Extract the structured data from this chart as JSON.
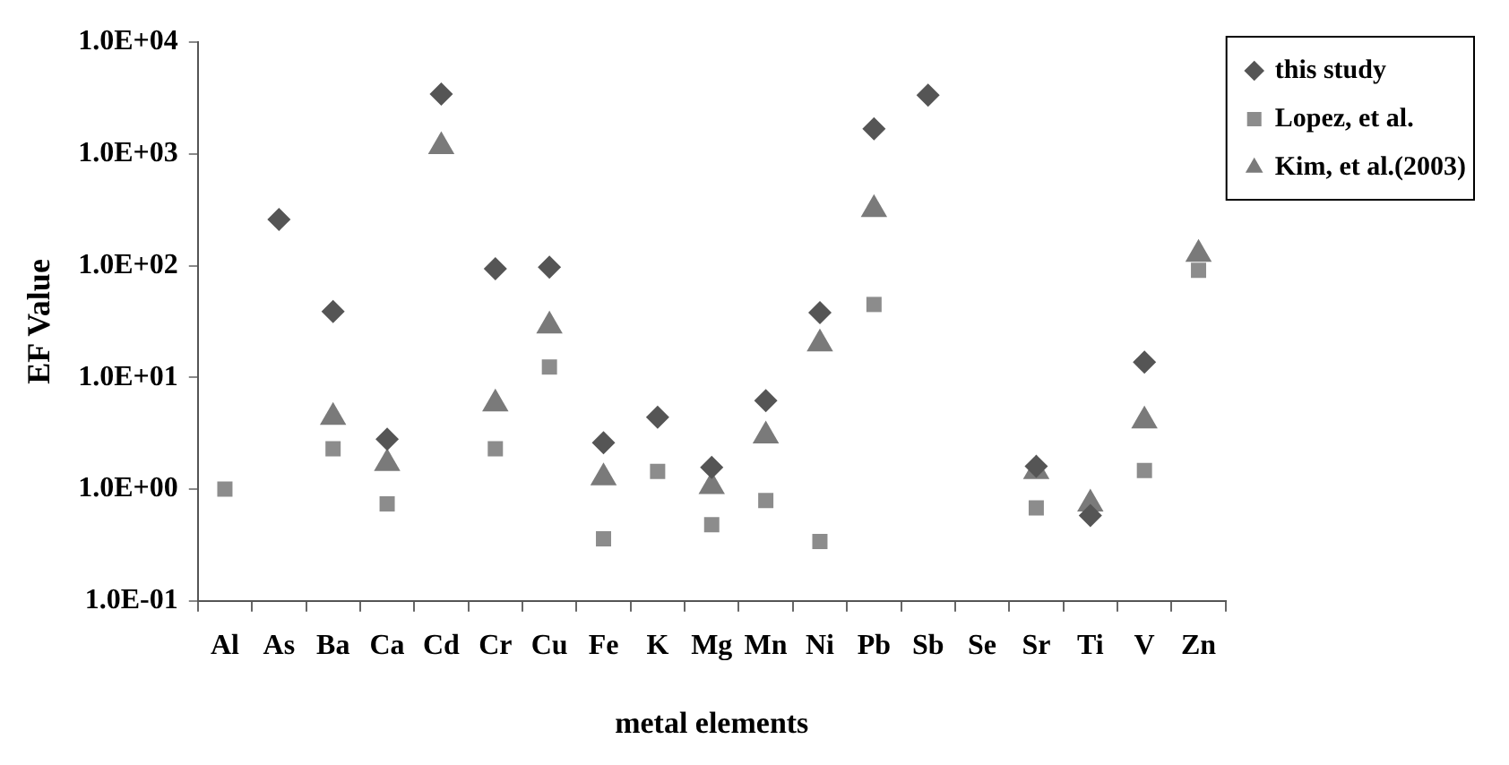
{
  "chart_data": {
    "type": "scatter",
    "xlabel": "metal elements",
    "ylabel": "EF Value",
    "categories": [
      "Al",
      "As",
      "Ba",
      "Ca",
      "Cd",
      "Cr",
      "Cu",
      "Fe",
      "K",
      "Mg",
      "Mn",
      "Ni",
      "Pb",
      "Sb",
      "Se",
      "Sr",
      "Ti",
      "V",
      "Zn"
    ],
    "series": [
      {
        "name": "this study",
        "color": "#555555",
        "marker": "diamond",
        "values": [
          null,
          260,
          39,
          2.8,
          3440,
          94,
          97,
          2.6,
          4.4,
          1.57,
          6.2,
          38,
          1680,
          3360,
          null,
          1.6,
          0.58,
          13.7,
          null
        ]
      },
      {
        "name": "Lopez, et al.",
        "color": "#8c8c8c",
        "marker": "square",
        "values": [
          1.0,
          null,
          2.3,
          0.74,
          null,
          2.3,
          12.4,
          0.36,
          1.44,
          0.48,
          0.79,
          0.34,
          45,
          null,
          null,
          0.68,
          null,
          1.47,
          91
        ]
      },
      {
        "name": "Kim, et al.(2003)",
        "color": "#7a7a7a",
        "marker": "triangle",
        "values": [
          null,
          null,
          4.4,
          1.7,
          1170,
          5.8,
          29,
          1.27,
          null,
          1.06,
          3.0,
          20,
          320,
          null,
          null,
          1.44,
          0.74,
          4.1,
          127
        ]
      }
    ],
    "log": "y",
    "ylim": [
      0.1,
      10000
    ],
    "yticks": [
      {
        "value": 0.1,
        "label": "1.0E-01"
      },
      {
        "value": 1,
        "label": "1.0E+00"
      },
      {
        "value": 10,
        "label": "1.0E+01"
      },
      {
        "value": 100,
        "label": "1.0E+02"
      },
      {
        "value": 1000,
        "label": "1.0E+03"
      },
      {
        "value": 10000,
        "label": "1.0E+04"
      }
    ],
    "grid": false,
    "legend": "top right"
  }
}
